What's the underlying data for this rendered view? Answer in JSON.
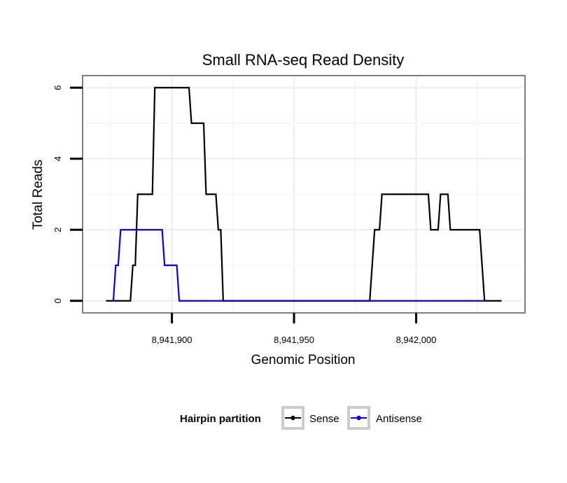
{
  "chart_data": {
    "type": "line",
    "title": "Small RNA-seq Read Density",
    "xlabel": "Genomic Position",
    "ylabel": "Total Reads",
    "xlim": [
      8941864,
      8942044
    ],
    "ylim": [
      -0.3,
      6.3
    ],
    "xticks": [
      8941900,
      8941950,
      8942000
    ],
    "xtick_labels": [
      "8,941,900",
      "8,941,950",
      "8,942,000"
    ],
    "yticks": [
      0,
      2,
      4,
      6
    ],
    "ytick_labels": [
      "0",
      "2",
      "4",
      "6"
    ],
    "grid": true,
    "legend": {
      "title": "Hairpin partition",
      "placement": "bottom"
    },
    "series": [
      {
        "name": "Sense",
        "color": "#000000",
        "points": [
          [
            8941873,
            0
          ],
          [
            8941883,
            0
          ],
          [
            8941884,
            1
          ],
          [
            8941885,
            1
          ],
          [
            8941886,
            3
          ],
          [
            8941892,
            3
          ],
          [
            8941893,
            6
          ],
          [
            8941907,
            6
          ],
          [
            8941908,
            5
          ],
          [
            8941913,
            5
          ],
          [
            8941914,
            3
          ],
          [
            8941918,
            3
          ],
          [
            8941919,
            2
          ],
          [
            8941920,
            2
          ],
          [
            8941921,
            0
          ],
          [
            8941981,
            0
          ],
          [
            8941983,
            2
          ],
          [
            8941985,
            2
          ],
          [
            8941986,
            3
          ],
          [
            8942005,
            3
          ],
          [
            8942006,
            2
          ],
          [
            8942009,
            2
          ],
          [
            8942010,
            3
          ],
          [
            8942013,
            3
          ],
          [
            8942014,
            2
          ],
          [
            8942026,
            2
          ],
          [
            8942028,
            0
          ],
          [
            8942035,
            0
          ]
        ]
      },
      {
        "name": "Antisense",
        "color": "#0000ff",
        "points": [
          [
            8941876,
            0
          ],
          [
            8941877,
            1
          ],
          [
            8941878,
            1
          ],
          [
            8941879,
            2
          ],
          [
            8941896,
            2
          ],
          [
            8941897,
            1
          ],
          [
            8941902,
            1
          ],
          [
            8941903,
            0
          ],
          [
            8942028,
            0
          ]
        ]
      }
    ]
  }
}
